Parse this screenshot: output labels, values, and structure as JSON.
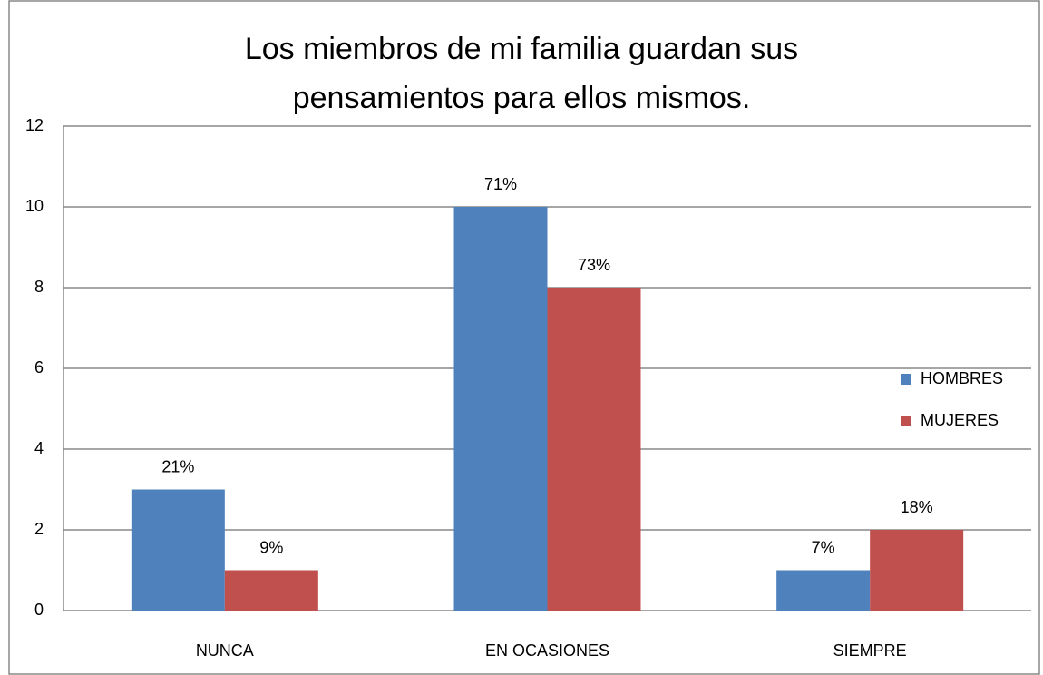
{
  "chart_data": {
    "type": "bar",
    "title": [
      "Los miembros de mi familia guardan sus",
      "pensamientos  para ellos  mismos."
    ],
    "categories": [
      "NUNCA",
      "EN OCASIONES",
      "SIEMPRE"
    ],
    "series": [
      {
        "name": "HOMBRES",
        "color": "#4f81bd",
        "values": [
          3,
          10,
          1
        ],
        "labels": [
          "21%",
          "71%",
          "7%"
        ]
      },
      {
        "name": "MUJERES",
        "color": "#c0504d",
        "values": [
          1,
          8,
          2
        ],
        "labels": [
          "9%",
          "73%",
          "18%"
        ]
      }
    ],
    "ylim": [
      0,
      12
    ],
    "yticks": [
      0,
      2,
      4,
      6,
      8,
      10,
      12
    ],
    "grid": true,
    "legend": "right"
  }
}
